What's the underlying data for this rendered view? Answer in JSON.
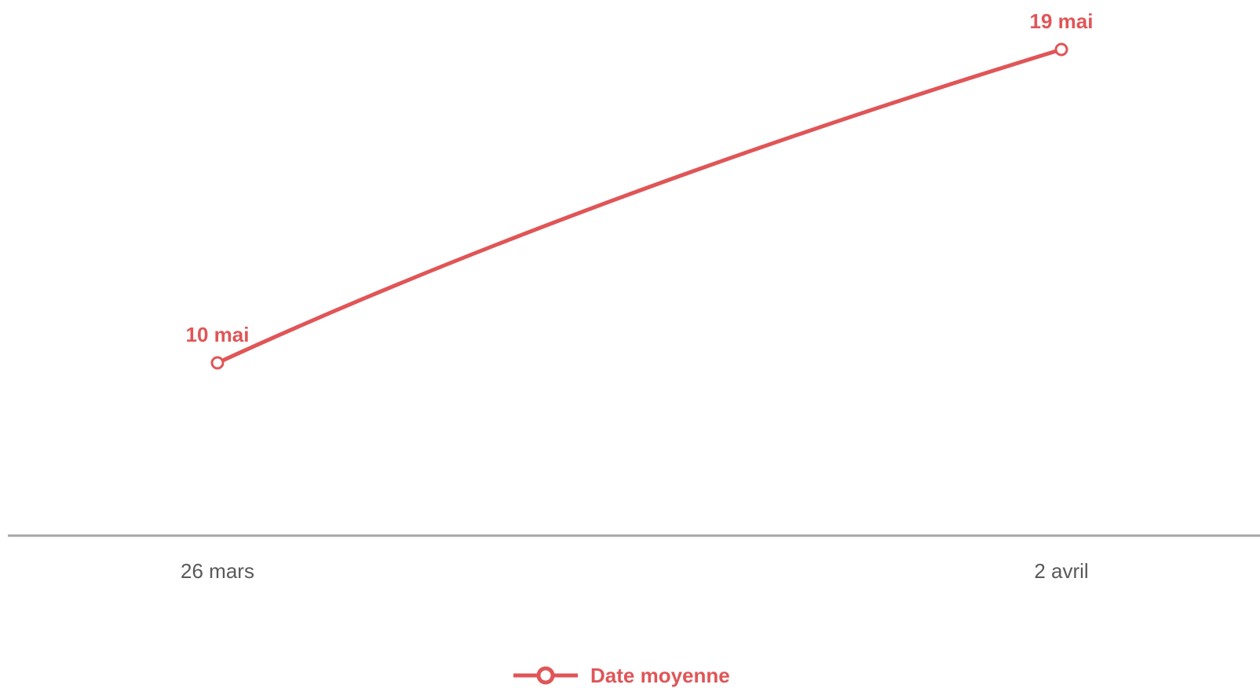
{
  "chart_data": {
    "type": "line",
    "categories": [
      "26 mars",
      "2 avril"
    ],
    "series": [
      {
        "name": "Date moyenne",
        "values": [
          "10 mai",
          "19 mai"
        ],
        "color": "#e05557"
      }
    ],
    "data_labels": [
      "10 mai",
      "19 mai"
    ],
    "y_axis_visible": false,
    "grid": false,
    "legend": {
      "position": "bottom",
      "label": "Date moyenne",
      "marker": "open-circle"
    },
    "axis_color": "#a6a6a6"
  }
}
